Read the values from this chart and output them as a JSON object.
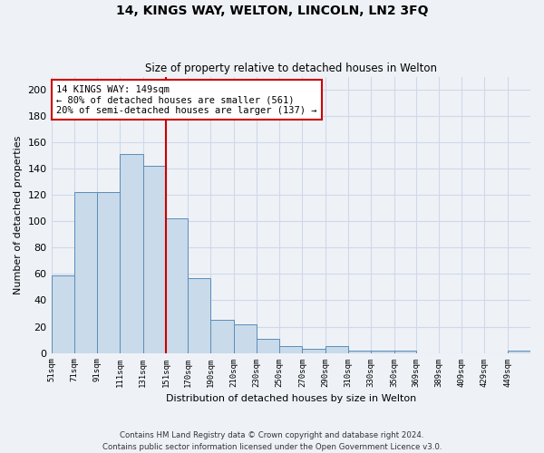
{
  "title": "14, KINGS WAY, WELTON, LINCOLN, LN2 3FQ",
  "subtitle": "Size of property relative to detached houses in Welton",
  "xlabel": "Distribution of detached houses by size in Welton",
  "ylabel": "Number of detached properties",
  "bin_edges": [
    51,
    71,
    91,
    111,
    131,
    151,
    170,
    190,
    210,
    230,
    250,
    270,
    290,
    310,
    330,
    350,
    369,
    389,
    409,
    429,
    449,
    469
  ],
  "heights": [
    59,
    122,
    122,
    151,
    142,
    102,
    57,
    25,
    22,
    11,
    5,
    3,
    5,
    2,
    2,
    2,
    0,
    0,
    0,
    0,
    2
  ],
  "tick_labels": [
    "51sqm",
    "71sqm",
    "91sqm",
    "111sqm",
    "131sqm",
    "151sqm",
    "170sqm",
    "190sqm",
    "210sqm",
    "230sqm",
    "250sqm",
    "270sqm",
    "290sqm",
    "310sqm",
    "330sqm",
    "350sqm",
    "369sqm",
    "389sqm",
    "409sqm",
    "429sqm",
    "449sqm"
  ],
  "ylim": [
    0,
    210
  ],
  "xlim": [
    51,
    469
  ],
  "bar_color": "#c9daea",
  "bar_edge_color": "#5b8db8",
  "vline_x": 151,
  "vline_color": "#cc0000",
  "annotation_text": "14 KINGS WAY: 149sqm\n← 80% of detached houses are smaller (561)\n20% of semi-detached houses are larger (137) →",
  "annotation_box_facecolor": "#ffffff",
  "annotation_box_edgecolor": "#cc0000",
  "footer": "Contains HM Land Registry data © Crown copyright and database right 2024.\nContains public sector information licensed under the Open Government Licence v3.0.",
  "bg_color": "#eef2f7",
  "grid_color": "#d0d8e8",
  "yticks": [
    0,
    20,
    40,
    60,
    80,
    100,
    120,
    140,
    160,
    180,
    200
  ]
}
